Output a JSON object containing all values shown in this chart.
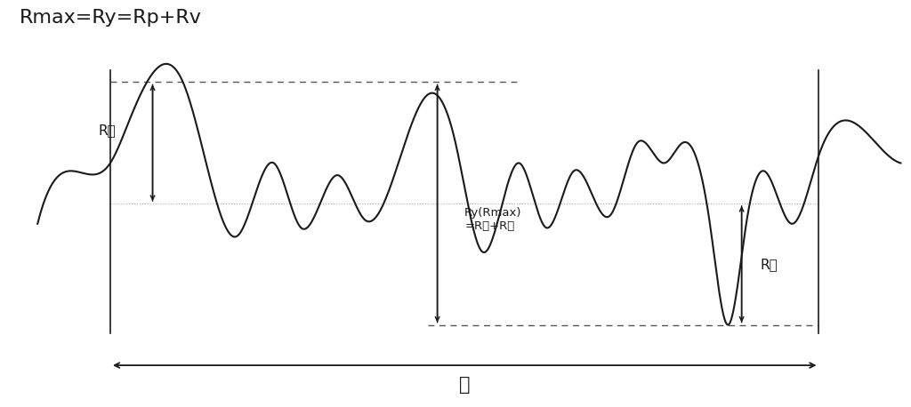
{
  "title_text": "Rmax=Ry=Rp+Rv",
  "title_fontsize": 16,
  "background_color": "#ffffff",
  "line_color": "#1a1a1a",
  "annotation_color": "#1a1a1a",
  "mean_line_color": "#b0b0b0",
  "dashed_line_color": "#555555",
  "fig_width": 10.24,
  "fig_height": 4.58,
  "label_Rp": "R峰",
  "label_Rv": "R谷",
  "label_Ry": "Ry(Rmax)\n=R峰+R谷",
  "label_l": "ℓ",
  "xlim": [
    0,
    100
  ],
  "ylim": [
    0,
    100
  ],
  "mean_y": 50,
  "peak_y": 80,
  "valley_y": 20,
  "x_start": 12,
  "x_end": 90
}
